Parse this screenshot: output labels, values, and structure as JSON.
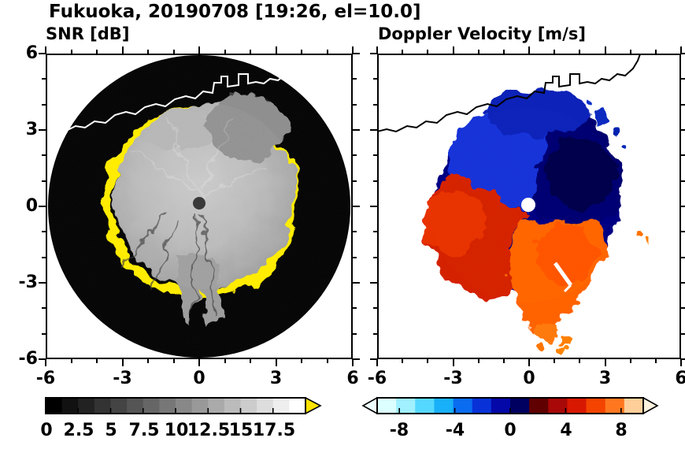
{
  "figure": {
    "title": "Fukuoka, 20190708 [19:26, el=10.0]",
    "location": "Fukuoka",
    "date": "20190708",
    "time": "19:26",
    "elevation_deg": 10.0
  },
  "panels": {
    "snr": {
      "title": "SNR [dB]"
    },
    "velocity": {
      "title": "Doppler Velocity [m/s]"
    }
  },
  "axes": {
    "x_ticks": [
      "-6",
      "-3",
      "0",
      "3",
      "6"
    ],
    "y_ticks": [
      "6",
      "3",
      "0",
      "-3",
      "-6"
    ]
  },
  "colorbars": {
    "snr": {
      "range": [
        0,
        20
      ],
      "labels": [
        "0",
        "2.5",
        "5",
        "7.5",
        "10",
        "12.5",
        "15",
        "17.5"
      ],
      "label_values": [
        0,
        2.5,
        5,
        7.5,
        10,
        12.5,
        15,
        17.5
      ],
      "colors": [
        "#000000",
        "#111111",
        "#222222",
        "#333333",
        "#444444",
        "#555555",
        "#666666",
        "#777777",
        "#888888",
        "#999999",
        "#aaaaaa",
        "#bbbbbb",
        "#cccccc",
        "#dddddd",
        "#eeeeee",
        "#ffffff"
      ],
      "overflow_arrow_color": "#ffe400"
    },
    "velocity": {
      "range": [
        -9.6,
        9.6
      ],
      "labels": [
        "-8",
        "-4",
        "0",
        "4",
        "8"
      ],
      "label_values": [
        -8,
        -4,
        0,
        4,
        8
      ],
      "colors": [
        "#dcffff",
        "#a0f0ff",
        "#55d8ff",
        "#18b0f8",
        "#0a6cf0",
        "#0832d8",
        "#0408a8",
        "#000060",
        "#600000",
        "#a80808",
        "#d81800",
        "#f44400",
        "#ff7820",
        "#ffcf9a"
      ],
      "under_arrow_color": "#eeffff",
      "over_arrow_color": "#fff3e0"
    }
  },
  "chart_data": [
    {
      "type": "heatmap",
      "title": "SNR [dB]",
      "xlim": [
        -6,
        6
      ],
      "ylim": [
        -6,
        6
      ],
      "x_ticks": [
        -6,
        -3,
        0,
        3,
        6
      ],
      "y_ticks": [
        -6,
        -3,
        0,
        3,
        6
      ],
      "grid": false,
      "colorbar": {
        "label": "SNR [dB]",
        "min": 0,
        "max": 20,
        "ticks": [
          0,
          2.5,
          5,
          7.5,
          10,
          12.5,
          15,
          17.5
        ],
        "colormap": "grayscale with yellow overflow arrow"
      },
      "content": "Radar/lidar PPI scan at elevation 10.0 deg: black no-signal disc of radius 6 km centered on origin; quasi-circular echo region of radius ~3.5-4 km around the origin with SNR ~10-15 dB (gray) showing radial streaks; saturated high-SNR fringe (>20 dB, yellow) along the west, southwest, south and east edges of the echo; darker ragged gray lobe extending northeast to ~(+3, +4); weak-echo wedge with dark radial streaks extending south to ~(0.5, -4.5); dark blind spot dot at the origin; white coastline outline drawn across the top of the panel"
    },
    {
      "type": "heatmap",
      "title": "Doppler Velocity [m/s]",
      "xlim": [
        -6,
        6
      ],
      "ylim": [
        -6,
        6
      ],
      "x_ticks": [
        -6,
        -3,
        0,
        3,
        6
      ],
      "y_ticks": [
        -6,
        -3,
        0,
        3,
        6
      ],
      "grid": false,
      "colorbar": {
        "label": "Doppler Velocity [m/s]",
        "min": -9.6,
        "max": 9.6,
        "ticks": [
          -8,
          -4,
          0,
          4,
          8
        ],
        "colormap": "diverging: pale-cyan / cyan / blue / navy (negative) to dark-red / red / orange / pale-orange (positive), arrows at both ends"
      },
      "content": "Same scan area on white background: negative (toward, blue to dark navy) velocities of ~-4 to -8 m/s cover the northern half and northeast of the echo disc; positive (away, red to orange) velocities of ~+4 to +8 m/s cover the west and the southern sector down to ~-5 km with scattered orange islands below; zero-isodop boundary runs roughly WNW-ESE through the origin; white dot at origin; small white streak gap near (1.5, -3); scattered blue specks northeast of the main echo; black coastline outline drawn across the top of the panel"
    }
  ]
}
